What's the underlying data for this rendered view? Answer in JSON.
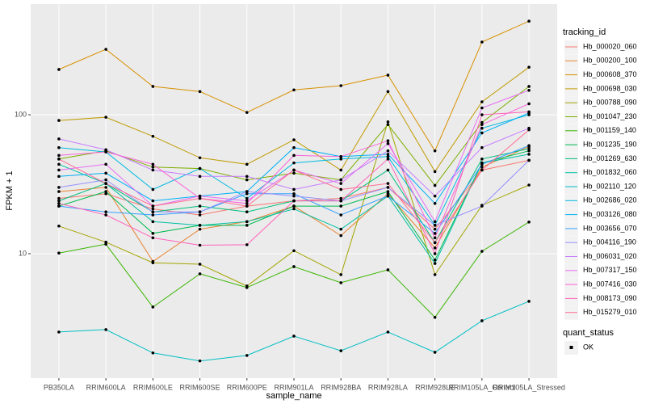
{
  "chart_data": {
    "type": "line",
    "log_y": true,
    "grid": true,
    "point_color": "#000000",
    "xlabel": "sample_name",
    "ylabel": "FPKM + 1",
    "categories": [
      "PB350LA",
      "RRIM600LA",
      "RRIM600LE",
      "RRIM600SE",
      "RRIM600PE",
      "RRIM901LA",
      "RRIM928BA",
      "RRIM928LA",
      "RRIM928LE",
      "RRIM105LA_Control",
      "RRIM105LA_Stressed"
    ],
    "ylim": [
      1.27,
      627
    ],
    "yticks": [
      10,
      100
    ],
    "legend_title": "tracking_id",
    "legend_position": "right",
    "shape_legend": {
      "title": "quant_status",
      "labels": [
        "OK"
      ]
    },
    "series": [
      {
        "name": "Hb_000020_060",
        "color": "#F8766D",
        "values": [
          25,
          27,
          21,
          19,
          22,
          24,
          25,
          30,
          15,
          40,
          47
        ]
      },
      {
        "name": "Hb_000200_100",
        "color": "#EA8331",
        "values": [
          28,
          30,
          8.8,
          15,
          17,
          22,
          13.5,
          27,
          11,
          42,
          59
        ]
      },
      {
        "name": "Hb_000608_370",
        "color": "#D89000",
        "values": [
          212,
          296,
          160,
          147,
          104,
          151,
          162,
          193,
          55,
          334,
          472
        ]
      },
      {
        "name": "Hb_000698_030",
        "color": "#C09B00",
        "values": [
          91,
          96,
          70,
          49,
          44,
          66,
          40,
          147,
          39,
          124,
          220
        ]
      },
      {
        "name": "Hb_000788_090",
        "color": "#A3A500",
        "values": [
          15.8,
          12.1,
          8.6,
          8.4,
          5.85,
          10.5,
          7.06,
          89,
          7.06,
          22.3,
          31.2
        ]
      },
      {
        "name": "Hb_001047_230",
        "color": "#7CAE00",
        "values": [
          48,
          55,
          42,
          41,
          34,
          38,
          34,
          85,
          31,
          88,
          160
        ]
      },
      {
        "name": "Hb_001159_140",
        "color": "#39B600",
        "values": [
          10.1,
          11.7,
          4.13,
          7.16,
          5.7,
          8.07,
          6.18,
          7.65,
          3.48,
          10.4,
          16.9
        ]
      },
      {
        "name": "Hb_001235_190",
        "color": "#00BB4E",
        "values": [
          22,
          28,
          14,
          16,
          16,
          22,
          22,
          28,
          9,
          45,
          55
        ]
      },
      {
        "name": "Hb_001269_630",
        "color": "#00BF7D",
        "values": [
          24,
          32,
          20,
          22,
          20,
          24,
          24,
          40,
          12,
          48,
          57
        ]
      },
      {
        "name": "Hb_001832_060",
        "color": "#00C1A3",
        "values": [
          44,
          32,
          17,
          16,
          17,
          21,
          15,
          26,
          8.5,
          45,
          52
        ]
      },
      {
        "name": "Hb_002110_120",
        "color": "#00BFC4",
        "values": [
          2.73,
          2.84,
          1.93,
          1.69,
          1.85,
          2.55,
          2.0,
          2.73,
          1.95,
          3.29,
          4.54
        ]
      },
      {
        "name": "Hb_002686_020",
        "color": "#00BAE0",
        "values": [
          58,
          54,
          29,
          41,
          25,
          45,
          48,
          50,
          16,
          80,
          100
        ]
      },
      {
        "name": "Hb_003126_080",
        "color": "#00B0F6",
        "values": [
          36,
          38,
          24,
          26,
          28,
          58,
          50,
          52,
          23,
          74,
          103
        ]
      },
      {
        "name": "Hb_003656_070",
        "color": "#35A2FF",
        "values": [
          22,
          20,
          19,
          20,
          27,
          27,
          19,
          26,
          14,
          44,
          60
        ]
      },
      {
        "name": "Hb_004116_190",
        "color": "#9590FF",
        "values": [
          30,
          34,
          20,
          20,
          28,
          26,
          24,
          30,
          16,
          22,
          47
        ]
      },
      {
        "name": "Hb_006031_020",
        "color": "#C77CFF",
        "values": [
          67,
          56,
          40,
          36,
          36,
          29,
          34,
          55,
          26,
          58,
          80
        ]
      },
      {
        "name": "Hb_007317_150",
        "color": "#E76BF3",
        "values": [
          40,
          44,
          22,
          26,
          24,
          40,
          32,
          62,
          17,
          112,
          150
        ]
      },
      {
        "name": "Hb_007416_030",
        "color": "#FA62DB",
        "values": [
          51,
          54,
          44,
          25,
          23,
          51,
          50,
          65,
          13,
          85,
          120
        ]
      },
      {
        "name": "Hb_008173_090",
        "color": "#FF62BC",
        "values": [
          23,
          19,
          13,
          11.5,
          11.6,
          24,
          24,
          48,
          10,
          100,
          105
        ]
      },
      {
        "name": "Hb_015279_010",
        "color": "#FF6C91",
        "values": [
          48,
          32,
          22,
          25,
          22,
          40,
          29,
          32,
          12,
          40,
          78
        ]
      }
    ]
  }
}
